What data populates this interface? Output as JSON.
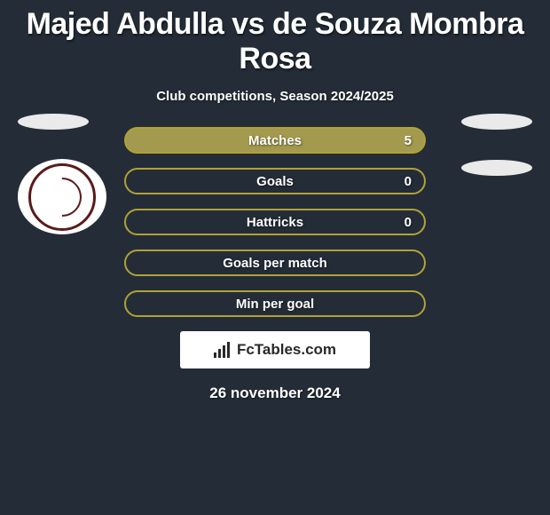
{
  "title": "Majed Abdulla vs de Souza Mombra Rosa",
  "subtitle": "Club competitions, Season 2024/2025",
  "stats": [
    {
      "label": "Matches",
      "value": "5",
      "border": "#b2a137",
      "fill": "#a39a4f"
    },
    {
      "label": "Goals",
      "value": "0",
      "border": "#b2a137",
      "fill": null
    },
    {
      "label": "Hattricks",
      "value": "0",
      "border": "#b2a137",
      "fill": null
    },
    {
      "label": "Goals per match",
      "value": "",
      "border": "#b2a137",
      "fill": null
    },
    {
      "label": "Min per goal",
      "value": "",
      "border": "#b2a137",
      "fill": null
    }
  ],
  "brand": "FcTables.com",
  "date": "26 november 2024",
  "colors": {
    "background": "#242d37",
    "stat_border": "#b2a137",
    "stat_fill": "#a39a4f"
  }
}
